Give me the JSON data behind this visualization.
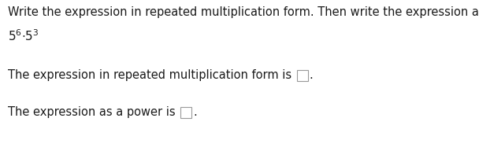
{
  "bg_color": "#ffffff",
  "line1": "Write the expression in repeated multiplication form. Then write the expression as a power.",
  "line3_prefix": "The expression in repeated multiplication form is ",
  "line4_prefix": "The expression as a power is ",
  "font_size_main": 10.5,
  "text_color": "#1a1a1a",
  "box_facecolor": "#ffffff",
  "box_edgecolor": "#999999",
  "figwidth": 6.08,
  "figheight": 1.83,
  "dpi": 100
}
